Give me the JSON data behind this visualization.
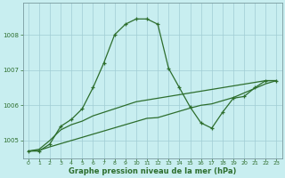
{
  "xlabel": "Graphe pression niveau de la mer (hPa)",
  "background_color": "#c8eef0",
  "grid_color": "#a0ccd4",
  "line_color": "#2d6e2d",
  "hours": [
    0,
    1,
    2,
    3,
    4,
    5,
    6,
    7,
    8,
    9,
    10,
    11,
    12,
    13,
    14,
    15,
    16,
    17,
    18,
    19,
    20,
    21,
    22,
    23
  ],
  "series1": [
    1004.7,
    1004.7,
    1004.9,
    1005.4,
    1005.6,
    1005.9,
    1006.5,
    1007.2,
    1008.0,
    1008.3,
    1008.45,
    1008.45,
    1008.3,
    1007.05,
    1006.5,
    1005.95,
    1005.5,
    1005.35,
    1005.8,
    1006.2,
    1006.25,
    1006.5,
    1006.7,
    1006.7
  ],
  "series2": [
    1004.7,
    1004.75,
    1005.0,
    1005.3,
    1005.45,
    1005.55,
    1005.7,
    1005.8,
    1005.9,
    1006.0,
    1006.1,
    1006.15,
    1006.2,
    1006.25,
    1006.3,
    1006.35,
    1006.4,
    1006.45,
    1006.5,
    1006.55,
    1006.6,
    1006.65,
    1006.7,
    1006.7
  ],
  "series3": [
    1004.7,
    1004.72,
    1004.82,
    1004.91,
    1005.0,
    1005.09,
    1005.18,
    1005.27,
    1005.36,
    1005.45,
    1005.54,
    1005.63,
    1005.65,
    1005.74,
    1005.83,
    1005.92,
    1006.0,
    1006.04,
    1006.13,
    1006.22,
    1006.35,
    1006.48,
    1006.61,
    1006.7
  ],
  "ylim": [
    1004.5,
    1008.9
  ],
  "yticks": [
    1005,
    1006,
    1007,
    1008
  ],
  "xticks": [
    0,
    1,
    2,
    3,
    4,
    5,
    6,
    7,
    8,
    9,
    10,
    11,
    12,
    13,
    14,
    15,
    16,
    17,
    18,
    19,
    20,
    21,
    22,
    23
  ]
}
